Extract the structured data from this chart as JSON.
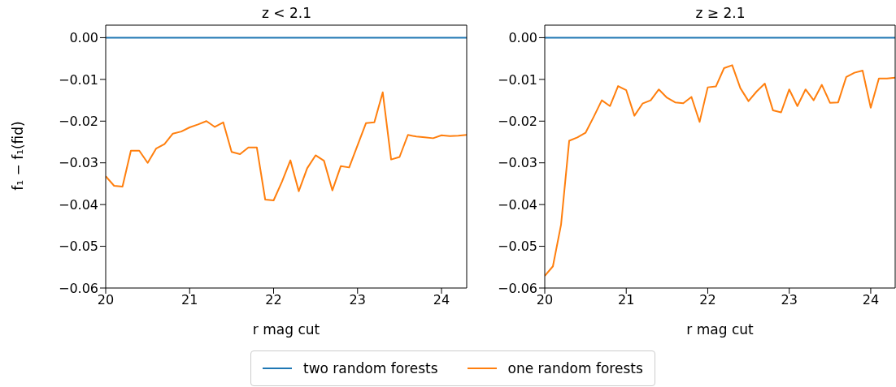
{
  "chart_data": [
    {
      "type": "line",
      "title": "z < 2.1",
      "xlabel": "r mag cut",
      "ylabel": "f₁ − f₁(fid)",
      "xlim": [
        20,
        24.3
      ],
      "xticks": [
        20,
        21,
        22,
        23,
        24
      ],
      "ylim": [
        -0.06,
        0.003
      ],
      "yticks": [
        {
          "value": 0,
          "label": "0.00"
        },
        {
          "value": -0.01,
          "label": "−0.01"
        },
        {
          "value": -0.02,
          "label": "−0.02"
        },
        {
          "value": -0.03,
          "label": "−0.03"
        },
        {
          "value": -0.04,
          "label": "−0.04"
        },
        {
          "value": -0.05,
          "label": "−0.05"
        },
        {
          "value": -0.06,
          "label": "−0.06"
        }
      ],
      "legend": "bottom",
      "x": [
        20.0,
        20.1,
        20.2,
        20.3,
        20.4,
        20.5,
        20.6,
        20.7,
        20.8,
        20.9,
        21.0,
        21.1,
        21.2,
        21.3,
        21.4,
        21.5,
        21.6,
        21.7,
        21.8,
        21.9,
        22.0,
        22.1,
        22.2,
        22.3,
        22.4,
        22.5,
        22.6,
        22.7,
        22.8,
        22.9,
        23.0,
        23.1,
        23.2,
        23.3,
        23.4,
        23.5,
        23.6,
        23.7,
        23.8,
        23.9,
        24.0,
        24.1,
        24.2,
        24.3
      ],
      "series": [
        {
          "name": "two random forests",
          "color": "#1f77b4",
          "values": [
            0,
            0,
            0,
            0,
            0,
            0,
            0,
            0,
            0,
            0,
            0,
            0,
            0,
            0,
            0,
            0,
            0,
            0,
            0,
            0,
            0,
            0,
            0,
            0,
            0,
            0,
            0,
            0,
            0,
            0,
            0,
            0,
            0,
            0,
            0,
            0,
            0,
            0,
            0,
            0,
            0,
            0,
            0,
            0
          ]
        },
        {
          "name": "one random forests",
          "color": "#ff7f0e",
          "values": [
            -0.0332,
            -0.0355,
            -0.0357,
            -0.0271,
            -0.0271,
            -0.03,
            -0.0266,
            -0.0255,
            -0.023,
            -0.0225,
            -0.0215,
            -0.0208,
            -0.02,
            -0.0214,
            -0.0203,
            -0.0274,
            -0.0279,
            -0.0263,
            -0.0263,
            -0.0388,
            -0.039,
            -0.0345,
            -0.0294,
            -0.0368,
            -0.0313,
            -0.0282,
            -0.0295,
            -0.0366,
            -0.0308,
            -0.0311,
            -0.0258,
            -0.0205,
            -0.0203,
            -0.0131,
            -0.0292,
            -0.0286,
            -0.0233,
            -0.0237,
            -0.0239,
            -0.0241,
            -0.0234,
            -0.0236,
            -0.0235,
            -0.0233
          ]
        }
      ]
    },
    {
      "type": "line",
      "title": "z ≥ 2.1",
      "xlabel": "r mag cut",
      "xlim": [
        20,
        24.3
      ],
      "xticks": [
        20,
        21,
        22,
        23,
        24
      ],
      "ylim": [
        -0.06,
        0.003
      ],
      "yticks": [
        {
          "value": 0,
          "label": "0.00"
        },
        {
          "value": -0.01,
          "label": "−0.01"
        },
        {
          "value": -0.02,
          "label": "−0.02"
        },
        {
          "value": -0.03,
          "label": "−0.03"
        },
        {
          "value": -0.04,
          "label": "−0.04"
        },
        {
          "value": -0.05,
          "label": "−0.05"
        },
        {
          "value": -0.06,
          "label": "−0.06"
        }
      ],
      "x": [
        20.0,
        20.1,
        20.2,
        20.3,
        20.4,
        20.5,
        20.6,
        20.7,
        20.8,
        20.9,
        21.0,
        21.1,
        21.2,
        21.3,
        21.4,
        21.5,
        21.6,
        21.7,
        21.8,
        21.9,
        22.0,
        22.1,
        22.2,
        22.3,
        22.4,
        22.5,
        22.6,
        22.7,
        22.8,
        22.9,
        23.0,
        23.1,
        23.2,
        23.3,
        23.4,
        23.5,
        23.6,
        23.7,
        23.8,
        23.9,
        24.0,
        24.1,
        24.2,
        24.3
      ],
      "series": [
        {
          "color": "#1f77b4",
          "values": [
            0,
            0,
            0,
            0,
            0,
            0,
            0,
            0,
            0,
            0,
            0,
            0,
            0,
            0,
            0,
            0,
            0,
            0,
            0,
            0,
            0,
            0,
            0,
            0,
            0,
            0,
            0,
            0,
            0,
            0,
            0,
            0,
            0,
            0,
            0,
            0,
            0,
            0,
            0,
            0,
            0,
            0,
            0,
            0
          ]
        },
        {
          "color": "#ff7f0e",
          "values": [
            -0.0571,
            -0.0548,
            -0.0448,
            -0.0247,
            -0.0239,
            -0.0228,
            -0.019,
            -0.015,
            -0.0164,
            -0.0116,
            -0.0126,
            -0.0187,
            -0.0158,
            -0.015,
            -0.0124,
            -0.0144,
            -0.0155,
            -0.0157,
            -0.0142,
            -0.0202,
            -0.0119,
            -0.0117,
            -0.0073,
            -0.0066,
            -0.0121,
            -0.0152,
            -0.0129,
            -0.011,
            -0.0174,
            -0.0179,
            -0.0124,
            -0.0164,
            -0.0124,
            -0.015,
            -0.0113,
            -0.0156,
            -0.0155,
            -0.0094,
            -0.0084,
            -0.0079,
            -0.0168,
            -0.0098,
            -0.0098,
            -0.0096
          ]
        }
      ]
    }
  ]
}
